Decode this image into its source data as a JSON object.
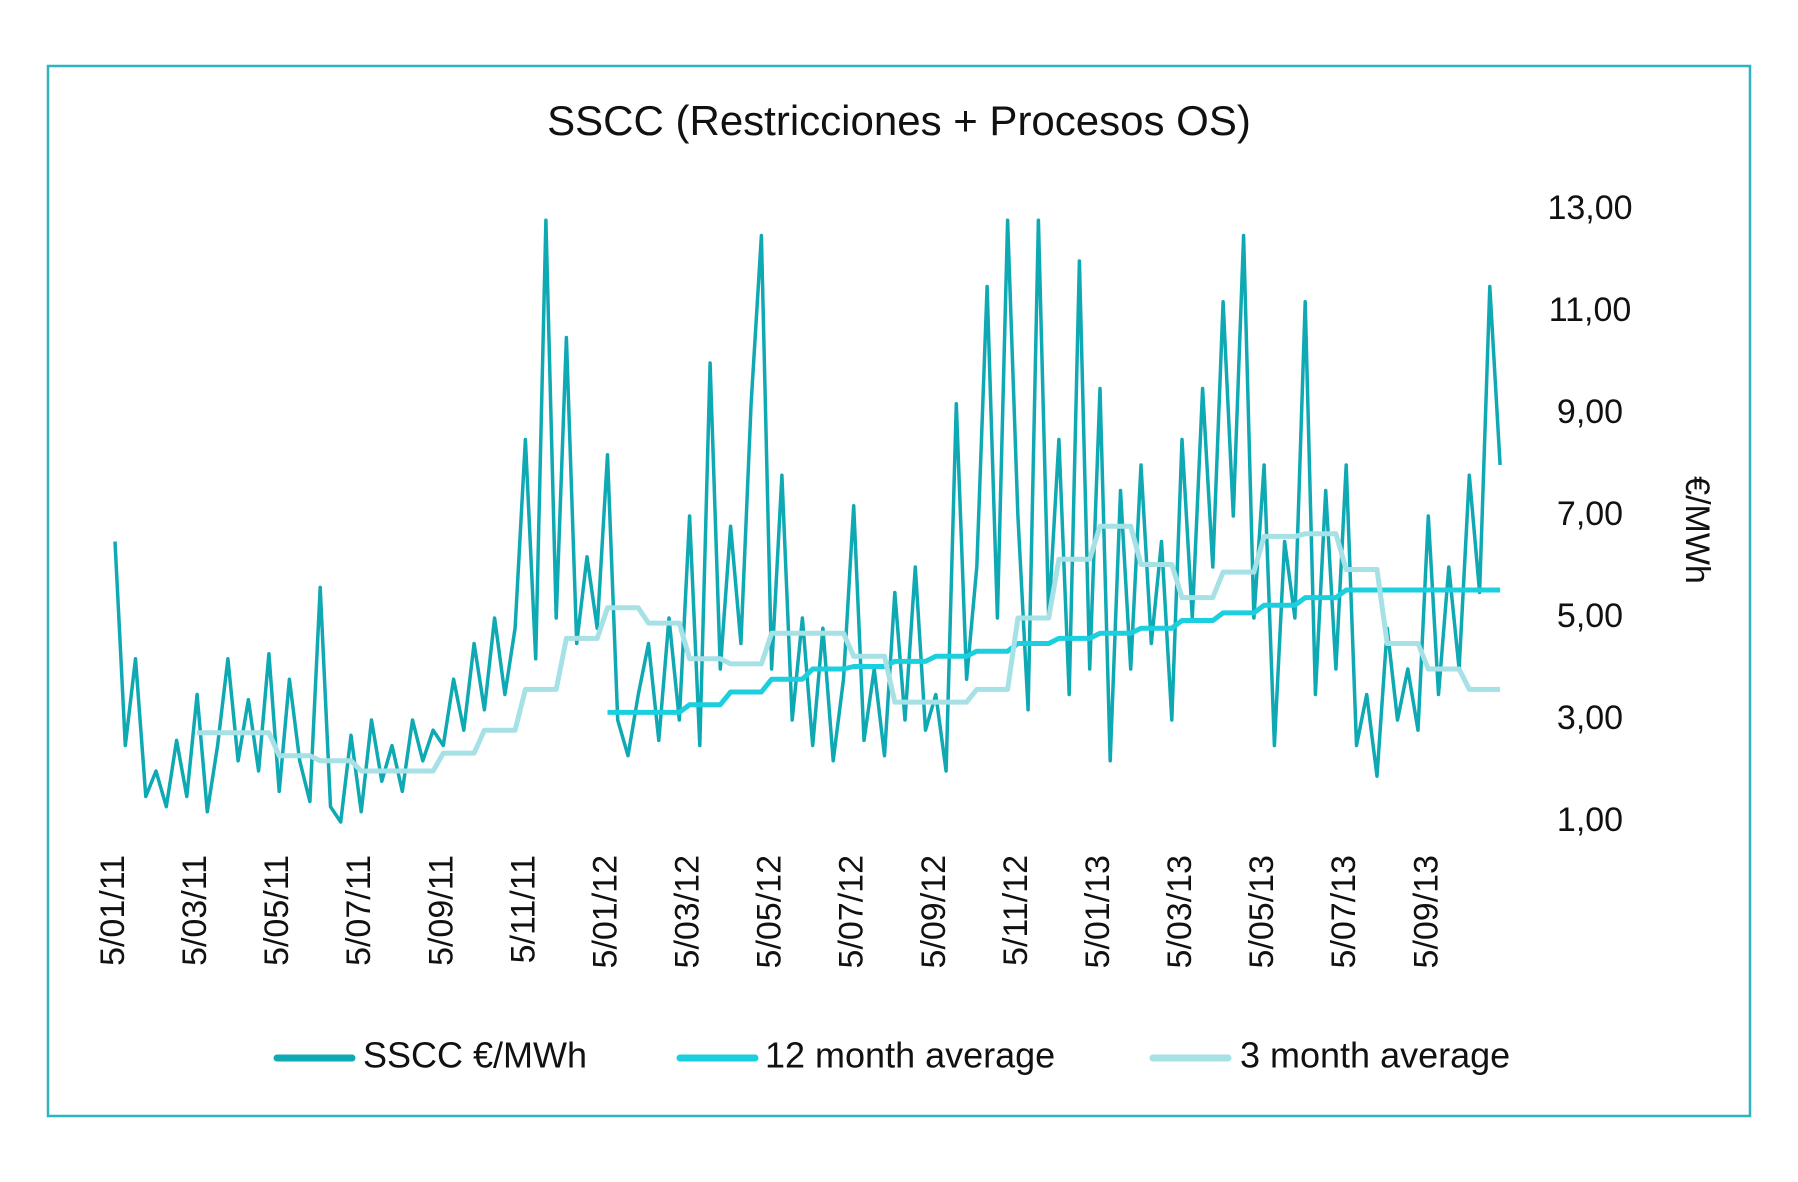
{
  "chart_data": {
    "type": "line",
    "title": "SSCC (Restricciones + Procesos OS)",
    "ylabel": "€/MWh",
    "categories": [
      "5/01/11",
      null,
      null,
      null,
      null,
      null,
      null,
      null,
      "5/03/11",
      null,
      null,
      null,
      null,
      null,
      null,
      null,
      "5/05/11",
      null,
      null,
      null,
      null,
      null,
      null,
      null,
      "5/07/11",
      null,
      null,
      null,
      null,
      null,
      null,
      null,
      "5/09/11",
      null,
      null,
      null,
      null,
      null,
      null,
      null,
      "5/11/11",
      null,
      null,
      null,
      null,
      null,
      null,
      null,
      "5/01/12",
      null,
      null,
      null,
      null,
      null,
      null,
      null,
      "5/03/12",
      null,
      null,
      null,
      null,
      null,
      null,
      null,
      "5/05/12",
      null,
      null,
      null,
      null,
      null,
      null,
      null,
      "5/07/12",
      null,
      null,
      null,
      null,
      null,
      null,
      null,
      "5/09/12",
      null,
      null,
      null,
      null,
      null,
      null,
      null,
      "5/11/12",
      null,
      null,
      null,
      null,
      null,
      null,
      null,
      "5/01/13",
      null,
      null,
      null,
      null,
      null,
      null,
      null,
      "5/03/13",
      null,
      null,
      null,
      null,
      null,
      null,
      null,
      "5/05/13",
      null,
      null,
      null,
      null,
      null,
      null,
      null,
      "5/07/13",
      null,
      null,
      null,
      null,
      null,
      null,
      null,
      "5/09/13",
      null,
      null,
      null,
      null,
      null,
      null,
      null
    ],
    "series": [
      {
        "name": "SSCC €/MWh",
        "color": "#0fa9b4",
        "values": [
          6.5,
          2.5,
          4.2,
          1.5,
          2.0,
          1.3,
          2.6,
          1.5,
          3.5,
          1.2,
          2.5,
          4.2,
          2.2,
          3.4,
          2.0,
          4.3,
          1.6,
          3.8,
          2.2,
          1.4,
          5.6,
          1.3,
          1.0,
          2.7,
          1.2,
          3.0,
          1.8,
          2.5,
          1.6,
          3.0,
          2.2,
          2.8,
          2.5,
          3.8,
          2.8,
          4.5,
          3.2,
          5.0,
          3.5,
          4.8,
          8.5,
          4.2,
          12.8,
          5.0,
          10.5,
          4.5,
          6.2,
          4.8,
          8.2,
          3.0,
          2.3,
          3.5,
          4.5,
          2.6,
          5.0,
          3.0,
          7.0,
          2.5,
          10.0,
          4.0,
          6.8,
          4.5,
          9.2,
          12.5,
          4.0,
          7.8,
          3.0,
          5.0,
          2.5,
          4.8,
          2.2,
          3.8,
          7.2,
          2.6,
          4.0,
          2.3,
          5.5,
          3.0,
          6.0,
          2.8,
          3.5,
          2.0,
          9.2,
          3.8,
          6.0,
          11.5,
          5.0,
          12.8,
          7.0,
          3.2,
          12.8,
          5.0,
          8.5,
          3.5,
          12.0,
          4.0,
          9.5,
          2.2,
          7.5,
          4.0,
          8.0,
          4.5,
          6.5,
          3.0,
          8.5,
          5.0,
          9.5,
          6.0,
          11.2,
          7.0,
          12.5,
          5.0,
          8.0,
          2.5,
          6.5,
          5.0,
          11.2,
          3.5,
          7.5,
          4.0,
          8.0,
          2.5,
          3.5,
          1.9,
          4.8,
          3.0,
          4.0,
          2.8,
          7.0,
          3.5,
          6.0,
          4.0,
          7.8,
          5.5,
          11.5,
          8.0
        ]
      },
      {
        "name": "12 month average",
        "color": "#1ccfdf",
        "values": [
          null,
          null,
          null,
          null,
          null,
          null,
          null,
          null,
          null,
          null,
          null,
          null,
          null,
          null,
          null,
          null,
          null,
          null,
          null,
          null,
          null,
          null,
          null,
          null,
          null,
          null,
          null,
          null,
          null,
          null,
          null,
          null,
          null,
          null,
          null,
          null,
          null,
          null,
          null,
          null,
          null,
          null,
          null,
          null,
          null,
          null,
          null,
          null,
          3.15,
          3.15,
          3.15,
          3.15,
          3.15,
          3.15,
          3.15,
          3.15,
          3.3,
          3.3,
          3.3,
          3.3,
          3.55,
          3.55,
          3.55,
          3.55,
          3.8,
          3.8,
          3.8,
          3.8,
          4.0,
          4.0,
          4.0,
          4.0,
          4.05,
          4.05,
          4.05,
          4.05,
          4.15,
          4.15,
          4.15,
          4.15,
          4.25,
          4.25,
          4.25,
          4.25,
          4.35,
          4.35,
          4.35,
          4.35,
          4.5,
          4.5,
          4.5,
          4.5,
          4.6,
          4.6,
          4.6,
          4.6,
          4.7,
          4.7,
          4.7,
          4.7,
          4.8,
          4.8,
          4.8,
          4.8,
          4.95,
          4.95,
          4.95,
          4.95,
          5.1,
          5.1,
          5.1,
          5.1,
          5.25,
          5.25,
          5.25,
          5.25,
          5.4,
          5.4,
          5.4,
          5.4,
          5.55,
          5.55,
          5.55,
          5.55,
          5.55,
          5.55,
          5.55,
          5.55,
          5.55,
          5.55,
          5.55,
          5.55,
          5.55,
          5.55,
          5.55,
          5.55
        ]
      },
      {
        "name": "3 month average",
        "color": "#a6e1e6",
        "values": [
          null,
          null,
          null,
          null,
          null,
          null,
          null,
          null,
          2.75,
          2.75,
          2.75,
          2.75,
          2.75,
          2.75,
          2.75,
          2.75,
          2.3,
          2.3,
          2.3,
          2.3,
          2.2,
          2.2,
          2.2,
          2.2,
          2.0,
          2.0,
          2.0,
          2.0,
          2.0,
          2.0,
          2.0,
          2.0,
          2.35,
          2.35,
          2.35,
          2.35,
          2.8,
          2.8,
          2.8,
          2.8,
          3.6,
          3.6,
          3.6,
          3.6,
          4.6,
          4.6,
          4.6,
          4.6,
          5.2,
          5.2,
          5.2,
          5.2,
          4.9,
          4.9,
          4.9,
          4.9,
          4.2,
          4.2,
          4.2,
          4.2,
          4.1,
          4.1,
          4.1,
          4.1,
          4.7,
          4.7,
          4.7,
          4.7,
          4.7,
          4.7,
          4.7,
          4.7,
          4.25,
          4.25,
          4.25,
          4.25,
          3.35,
          3.35,
          3.35,
          3.35,
          3.35,
          3.35,
          3.35,
          3.35,
          3.6,
          3.6,
          3.6,
          3.6,
          5.0,
          5.0,
          5.0,
          5.0,
          6.15,
          6.15,
          6.15,
          6.15,
          6.8,
          6.8,
          6.8,
          6.8,
          6.05,
          6.05,
          6.05,
          6.05,
          5.4,
          5.4,
          5.4,
          5.4,
          5.9,
          5.9,
          5.9,
          5.9,
          6.6,
          6.6,
          6.6,
          6.6,
          6.65,
          6.65,
          6.65,
          6.65,
          5.95,
          5.95,
          5.95,
          5.95,
          4.5,
          4.5,
          4.5,
          4.5,
          4.0,
          4.0,
          4.0,
          4.0,
          3.6,
          3.6,
          3.6,
          3.6
        ]
      }
    ],
    "ylim": [
      1,
      13
    ],
    "yticks": [
      {
        "value": 1,
        "label": "1,00"
      },
      {
        "value": 3,
        "label": "3,00"
      },
      {
        "value": 5,
        "label": "5,00"
      },
      {
        "value": 7,
        "label": "7,00"
      },
      {
        "value": 9,
        "label": "9,00"
      },
      {
        "value": 11,
        "label": "11,00"
      },
      {
        "value": 13,
        "label": "13,00"
      }
    ],
    "grid": false,
    "legend": "bottom"
  }
}
